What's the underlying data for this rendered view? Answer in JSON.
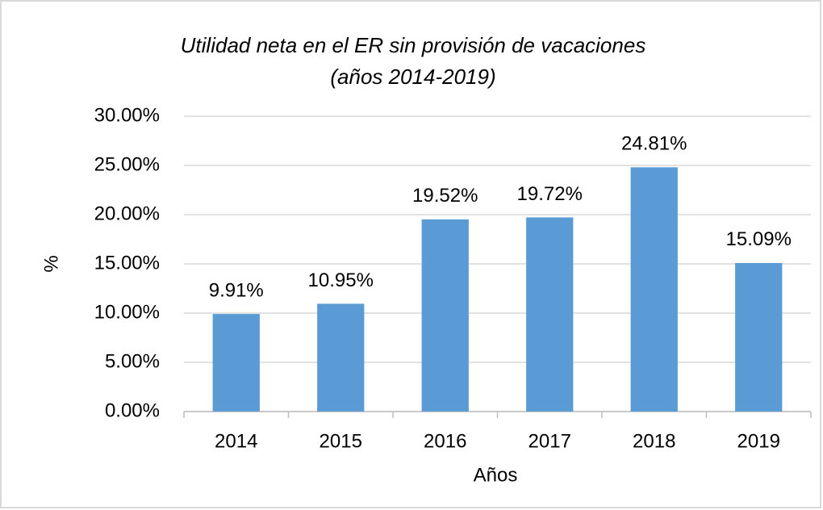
{
  "chart_data": {
    "type": "bar",
    "title": "Utilidad neta en el ER sin provisión de vacaciones",
    "subtitle": "(años 2014-2019)",
    "x_label": "Años",
    "y_label": "%",
    "categories": [
      "2014",
      "2015",
      "2016",
      "2017",
      "2018",
      "2019"
    ],
    "values": [
      9.91,
      10.95,
      19.52,
      19.72,
      24.81,
      15.09
    ],
    "value_labels": [
      "9.91%",
      "10.95%",
      "19.52%",
      "19.72%",
      "24.81%",
      "15.09%"
    ],
    "color": "#5b9bd5",
    "ylim": [
      0,
      30
    ],
    "yticks": [
      {
        "value": 0,
        "label": "0.00%"
      },
      {
        "value": 5,
        "label": "5.00%"
      },
      {
        "value": 10,
        "label": "10.00%"
      },
      {
        "value": 15,
        "label": "15.00%"
      },
      {
        "value": 20,
        "label": "20.00%"
      },
      {
        "value": 25,
        "label": "25.00%"
      },
      {
        "value": 30,
        "label": "30.00%"
      }
    ],
    "grid": true
  }
}
